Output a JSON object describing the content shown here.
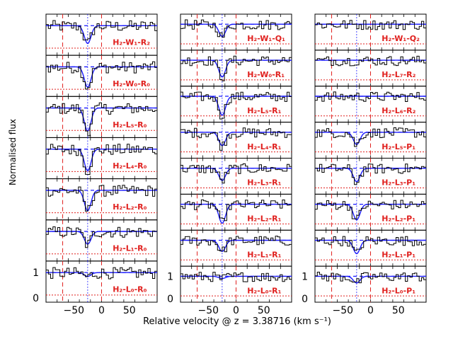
{
  "chart_data": {
    "type": "line",
    "xlabel": "Relative velocity @ z = 3.38716 (km s⁻¹)",
    "ylabel": "Normalised flux",
    "xlim": [
      -100,
      100
    ],
    "x_ticks": [
      -50,
      0,
      50
    ],
    "y_ticks": [
      0,
      1
    ],
    "reference_lines_velocity": [
      -70,
      0
    ],
    "line_center_velocity": -25,
    "columns": [
      {
        "panels": [
          {
            "label": "H₂-W₁-R₂",
            "depth": 0.7
          },
          {
            "label": "H₂-W₀-R₀",
            "depth": 0.8
          },
          {
            "label": "H₂-L₅-R₀",
            "depth": 0.9
          },
          {
            "label": "H₂-L₄-R₀",
            "depth": 0.85
          },
          {
            "label": "H₂-L₂-R₀",
            "depth": 0.8
          },
          {
            "label": "H₂-L₁-R₀",
            "depth": 0.5
          },
          {
            "label": "H₂-L₀-R₀",
            "depth": 0.15
          }
        ]
      },
      {
        "panels": [
          {
            "label": "H₂-W₁-Q₁",
            "depth": 0.55
          },
          {
            "label": "H₂-W₀-R₁",
            "depth": 0.75
          },
          {
            "label": "H₂-L₅-R₁",
            "depth": 0.85
          },
          {
            "label": "H₂-L₄-R₁",
            "depth": 0.6
          },
          {
            "label": "H₂-L₃-R₁",
            "depth": 0.55
          },
          {
            "label": "H₂-L₂-R₁",
            "depth": 0.85
          },
          {
            "label": "H₂-L₁-R₁",
            "depth": 0.5
          },
          {
            "label": "H₂-L₀-R₁",
            "depth": 0.1
          }
        ]
      },
      {
        "panels": [
          {
            "label": "H₂-W₁-Q₂",
            "depth": 0.0
          },
          {
            "label": "H₂-L₇-R₂",
            "depth": 0.0
          },
          {
            "label": "H₂-L₆-R₂",
            "depth": 0.0
          },
          {
            "label": "H₂-L₅-P₁",
            "depth": 0.55
          },
          {
            "label": "H₂-L₃-P₁",
            "depth": 0.6
          },
          {
            "label": "H₂-L₂-P₁",
            "depth": 0.7
          },
          {
            "label": "H₂-L₁-P₁",
            "depth": 0.6
          },
          {
            "label": "H₂-L₀-P₁",
            "depth": 0.3
          }
        ]
      }
    ]
  }
}
